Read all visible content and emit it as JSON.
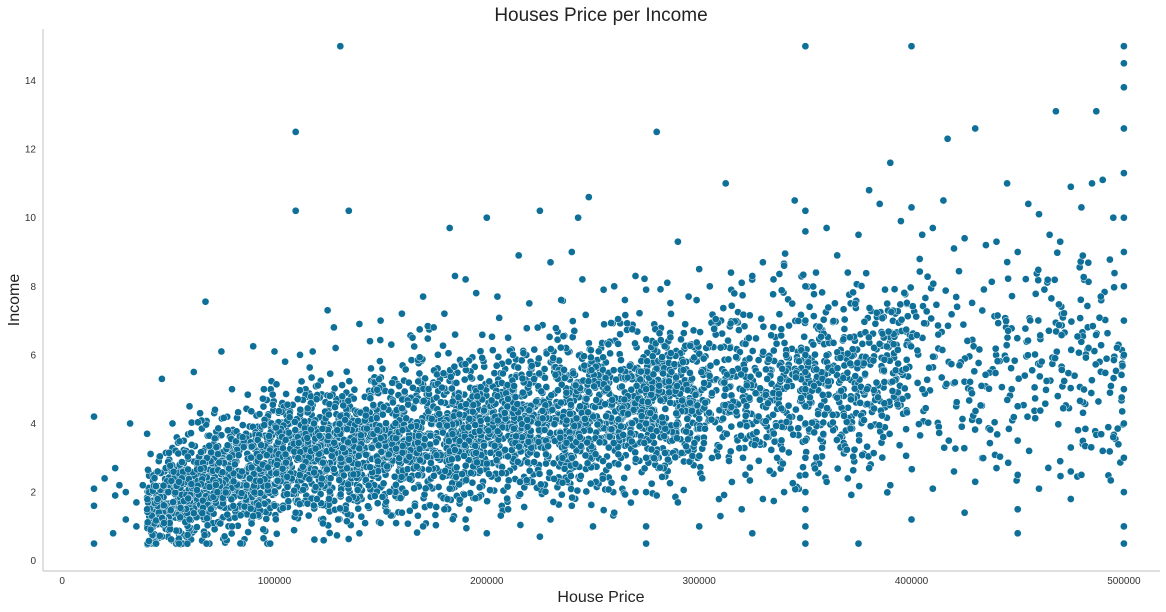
{
  "chart_data": {
    "type": "scatter",
    "title": "Houses Price per Income",
    "xlabel": "House Price",
    "ylabel": "Income",
    "xlim": [
      -9000,
      517000
    ],
    "ylim": [
      -0.3,
      15.5
    ],
    "xticks": [
      0,
      100000,
      200000,
      300000,
      400000,
      500000
    ],
    "xtick_labels": [
      "0",
      "100000",
      "200000",
      "300000",
      "400000",
      "500000"
    ],
    "yticks": [
      0,
      2,
      4,
      6,
      8,
      10,
      12,
      14
    ],
    "ytick_labels": [
      "0",
      "2",
      "4",
      "6",
      "8",
      "10",
      "12",
      "14"
    ],
    "grid": false,
    "marker_color": "#0e6f99",
    "series": [
      {
        "points": [
          [
            15000,
            0.5
          ],
          [
            15000,
            4.2
          ],
          [
            15000,
            1.6
          ],
          [
            15000,
            2.1
          ],
          [
            20000,
            2.4
          ],
          [
            24000,
            0.8
          ],
          [
            25000,
            2.7
          ],
          [
            27000,
            2.2
          ],
          [
            30000,
            1.2
          ],
          [
            32000,
            4.0
          ],
          [
            35000,
            1.0
          ],
          [
            38000,
            2.2
          ],
          [
            40000,
            3.7
          ],
          [
            45000,
            2.6
          ],
          [
            47000,
            5.3
          ],
          [
            48000,
            1.1
          ],
          [
            52000,
            4.0
          ],
          [
            55000,
            0.5
          ],
          [
            60000,
            4.5
          ],
          [
            62000,
            5.5
          ],
          [
            65000,
            4.3
          ],
          [
            67500,
            7.55
          ],
          [
            68000,
            0.5
          ],
          [
            72000,
            4.4
          ],
          [
            75000,
            6.1
          ],
          [
            80000,
            5.0
          ],
          [
            85000,
            3.6
          ],
          [
            90000,
            6.25
          ],
          [
            95000,
            5.0
          ],
          [
            98000,
            0.5
          ],
          [
            100000,
            6.1
          ],
          [
            105000,
            5.8
          ],
          [
            110000,
            12.5
          ],
          [
            110000,
            10.2
          ],
          [
            112000,
            6.0
          ],
          [
            118000,
            6.1
          ],
          [
            125000,
            7.3
          ],
          [
            128000,
            6.8
          ],
          [
            131000,
            15.0
          ],
          [
            135000,
            10.2
          ],
          [
            140000,
            6.9
          ],
          [
            145000,
            6.4
          ],
          [
            150000,
            7.0
          ],
          [
            155000,
            6.3
          ],
          [
            160000,
            7.2
          ],
          [
            165000,
            6.5
          ],
          [
            170000,
            7.7
          ],
          [
            175000,
            6.8
          ],
          [
            180000,
            7.2
          ],
          [
            182500,
            9.7
          ],
          [
            185000,
            8.3
          ],
          [
            190000,
            8.2
          ],
          [
            195000,
            7.8
          ],
          [
            200000,
            10.0
          ],
          [
            205000,
            7.7
          ],
          [
            210000,
            6.5
          ],
          [
            215000,
            8.9
          ],
          [
            220000,
            7.5
          ],
          [
            225000,
            10.2
          ],
          [
            230000,
            8.7
          ],
          [
            235000,
            7.6
          ],
          [
            240000,
            9.0
          ],
          [
            243000,
            10.0
          ],
          [
            245000,
            8.2
          ],
          [
            248000,
            10.6
          ],
          [
            255000,
            7.9
          ],
          [
            260000,
            8.0
          ],
          [
            265000,
            7.6
          ],
          [
            270000,
            8.3
          ],
          [
            275000,
            7.9
          ],
          [
            280000,
            12.5
          ],
          [
            285000,
            8.1
          ],
          [
            290000,
            9.3
          ],
          [
            295000,
            7.7
          ],
          [
            300000,
            8.5
          ],
          [
            305000,
            8.0
          ],
          [
            312500,
            11.0
          ],
          [
            315000,
            8.4
          ],
          [
            320000,
            8.1
          ],
          [
            325000,
            8.3
          ],
          [
            330000,
            8.7
          ],
          [
            335000,
            8.2
          ],
          [
            340000,
            8.6
          ],
          [
            345000,
            10.5
          ],
          [
            350000,
            15.0
          ],
          [
            350000,
            10.2
          ],
          [
            355000,
            8.4
          ],
          [
            360000,
            9.7
          ],
          [
            365000,
            8.9
          ],
          [
            370000,
            8.4
          ],
          [
            375000,
            9.5
          ],
          [
            380000,
            10.8
          ],
          [
            385000,
            10.4
          ],
          [
            390000,
            11.6
          ],
          [
            395000,
            9.9
          ],
          [
            400000,
            15.0
          ],
          [
            400000,
            10.3
          ],
          [
            405000,
            9.5
          ],
          [
            410000,
            9.7
          ],
          [
            415000,
            10.5
          ],
          [
            417000,
            12.3
          ],
          [
            420000,
            9.1
          ],
          [
            425000,
            9.4
          ],
          [
            430000,
            12.6
          ],
          [
            435000,
            9.2
          ],
          [
            440000,
            9.3
          ],
          [
            445000,
            11.0
          ],
          [
            450000,
            9.0
          ],
          [
            455000,
            10.4
          ],
          [
            460000,
            10.1
          ],
          [
            465000,
            9.5
          ],
          [
            468000,
            13.1
          ],
          [
            470000,
            9.3
          ],
          [
            475000,
            10.9
          ],
          [
            480000,
            10.3
          ],
          [
            485000,
            11.0
          ],
          [
            487000,
            13.1
          ],
          [
            490000,
            11.1
          ],
          [
            495000,
            10.0
          ],
          [
            500000,
            15.0
          ],
          [
            500000,
            14.5
          ],
          [
            500000,
            13.8
          ],
          [
            500000,
            12.6
          ],
          [
            500000,
            11.3
          ],
          [
            500000,
            10.0
          ],
          [
            500000,
            9.0
          ],
          [
            500000,
            8.0
          ],
          [
            500000,
            7.0
          ],
          [
            500000,
            6.0
          ],
          [
            500000,
            5.0
          ],
          [
            500000,
            4.0
          ],
          [
            500000,
            3.0
          ],
          [
            500000,
            2.0
          ],
          [
            500000,
            1.0
          ],
          [
            500000,
            0.5
          ],
          [
            350000,
            0.5
          ],
          [
            350000,
            1.0
          ],
          [
            350000,
            1.5
          ],
          [
            350000,
            2.0
          ],
          [
            350000,
            2.5
          ],
          [
            350000,
            3.0
          ],
          [
            350000,
            3.5
          ],
          [
            350000,
            4.0
          ],
          [
            350000,
            4.5
          ],
          [
            350000,
            5.0
          ],
          [
            350000,
            5.5
          ],
          [
            350000,
            6.0
          ],
          [
            350000,
            7.0
          ],
          [
            350000,
            8.0
          ],
          [
            350000,
            9.6
          ],
          [
            275000,
            0.5
          ],
          [
            275000,
            1.0
          ],
          [
            275000,
            2.0
          ],
          [
            275000,
            3.0
          ],
          [
            275000,
            4.0
          ],
          [
            275000,
            5.0
          ],
          [
            375000,
            0.5
          ],
          [
            450000,
            0.8
          ],
          [
            450000,
            1.5
          ],
          [
            450000,
            2.5
          ],
          [
            450000,
            3.5
          ],
          [
            450000,
            4.5
          ],
          [
            475000,
            1.8
          ],
          [
            475000,
            2.6
          ],
          [
            475000,
            3.3
          ],
          [
            400000,
            1.2
          ],
          [
            425000,
            1.4
          ],
          [
            325000,
            0.8
          ],
          [
            300000,
            1.0
          ],
          [
            225000,
            0.7
          ],
          [
            200000,
            0.8
          ],
          [
            250000,
            1.0
          ],
          [
            310000,
            1.3
          ],
          [
            320000,
            1.5
          ],
          [
            330000,
            1.8
          ],
          [
            340000,
            2.0
          ],
          [
            360000,
            2.3
          ],
          [
            370000,
            2.4
          ],
          [
            380000,
            2.7
          ],
          [
            390000,
            2.2
          ],
          [
            410000,
            2.1
          ],
          [
            420000,
            2.6
          ],
          [
            430000,
            2.3
          ],
          [
            440000,
            2.7
          ],
          [
            460000,
            2.1
          ],
          [
            470000,
            2.9
          ],
          [
            480000,
            2.5
          ],
          [
            490000,
            3.2
          ],
          [
            495000,
            3.6
          ],
          [
            60000,
            1.2
          ],
          [
            70000,
            1.5
          ],
          [
            80000,
            1.0
          ],
          [
            90000,
            1.3
          ],
          [
            100000,
            1.6
          ],
          [
            110000,
            1.4
          ],
          [
            120000,
            1.8
          ],
          [
            130000,
            1.2
          ],
          [
            140000,
            0.8
          ],
          [
            150000,
            1.1
          ],
          [
            160000,
            1.4
          ],
          [
            170000,
            1.0
          ],
          [
            180000,
            1.5
          ],
          [
            190000,
            1.2
          ],
          [
            210000,
            1.5
          ],
          [
            230000,
            1.2
          ],
          [
            240000,
            1.6
          ],
          [
            260000,
            1.4
          ],
          [
            270000,
            2.0
          ],
          [
            280000,
            1.9
          ],
          [
            290000,
            1.7
          ],
          [
            40000,
            1.5
          ],
          [
            45000,
            1.8
          ],
          [
            50000,
            2.0
          ],
          [
            55000,
            2.3
          ],
          [
            35000,
            1.7
          ],
          [
            30000,
            2.0
          ],
          [
            25000,
            1.9
          ]
        ]
      }
    ],
    "dense_cloud": {
      "description_points": 0,
      "bands": [
        {
          "x": [
            40000,
            100000
          ],
          "y_mean": [
            1.5,
            3.0
          ],
          "y_spread": [
            1.0,
            1.6
          ],
          "n": 900
        },
        {
          "x": [
            100000,
            200000
          ],
          "y_mean": [
            3.0,
            3.9
          ],
          "y_spread": [
            1.5,
            1.9
          ],
          "n": 1500
        },
        {
          "x": [
            200000,
            300000
          ],
          "y_mean": [
            3.9,
            4.8
          ],
          "y_spread": [
            1.7,
            2.0
          ],
          "n": 1300
        },
        {
          "x": [
            300000,
            400000
          ],
          "y_mean": [
            4.8,
            5.6
          ],
          "y_spread": [
            2.0,
            2.4
          ],
          "n": 800
        },
        {
          "x": [
            400000,
            500000
          ],
          "y_mean": [
            5.6,
            6.0
          ],
          "y_spread": [
            2.3,
            2.6
          ],
          "n": 300
        }
      ]
    }
  }
}
